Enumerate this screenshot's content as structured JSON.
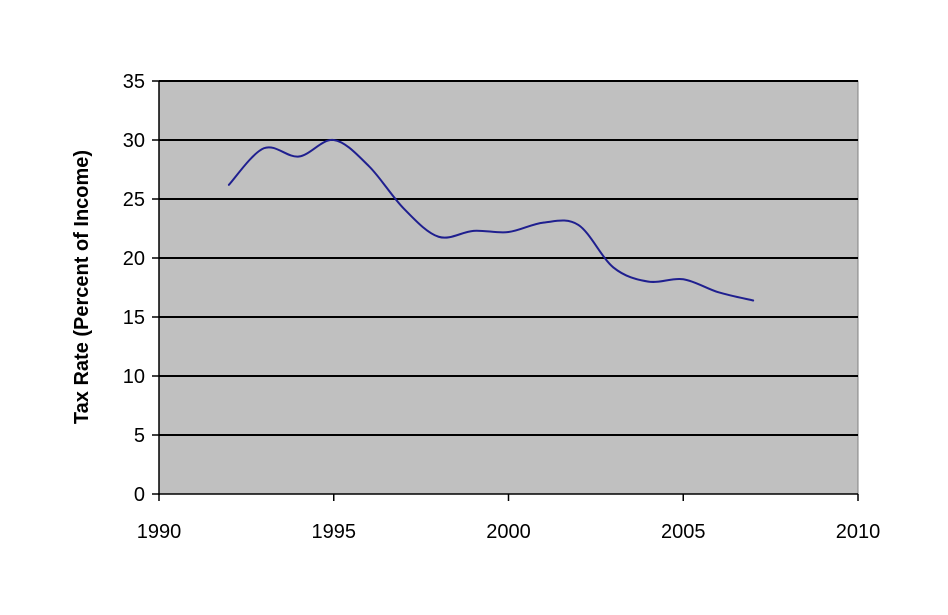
{
  "chart_data": {
    "type": "line",
    "title": "",
    "xlabel": "",
    "ylabel": "Tax Rate (Percent of Income)",
    "xlim": [
      1990,
      2010
    ],
    "ylim": [
      0,
      35
    ],
    "x_ticks": [
      1990,
      1995,
      2000,
      2005,
      2010
    ],
    "y_ticks": [
      0,
      5,
      10,
      15,
      20,
      25,
      30,
      35
    ],
    "grid": "horizontal",
    "legend": "none",
    "colors": {
      "plot_background": "#c0c0c0",
      "line": "#1f1f8f",
      "gridline": "#000000"
    },
    "series": [
      {
        "x": [
          1992,
          1993,
          1994,
          1995,
          1996,
          1997,
          1998,
          1999,
          2000,
          2001,
          2002,
          2003,
          2004,
          2005,
          2006,
          2007
        ],
        "values": [
          26.2,
          29.3,
          28.6,
          30.0,
          27.8,
          24.2,
          21.8,
          22.3,
          22.2,
          23.0,
          22.8,
          19.2,
          18.0,
          18.2,
          17.1,
          16.4
        ]
      }
    ]
  }
}
